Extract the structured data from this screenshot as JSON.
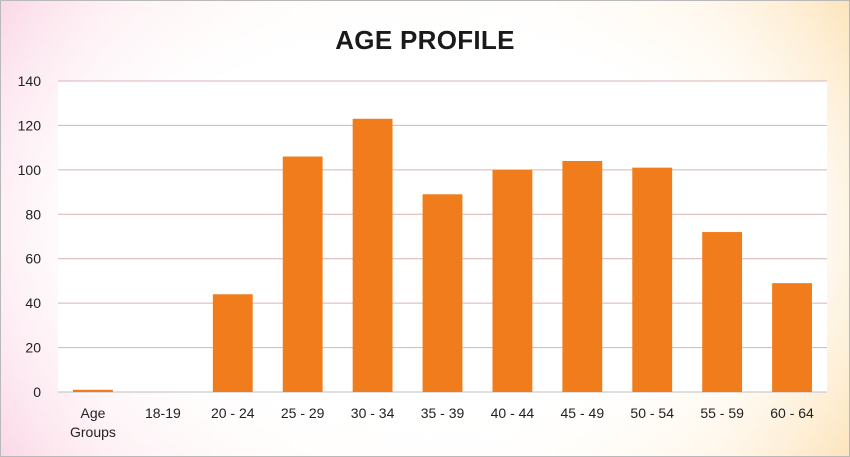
{
  "chart_data": {
    "type": "bar",
    "title": "AGE PROFILE",
    "categories": [
      "Age Groups",
      "18-19",
      "20 - 24",
      "25 - 29",
      "30 - 34",
      "35 - 39",
      "40 - 44",
      "45 - 49",
      "50 - 54",
      "55 - 59",
      "60 - 64"
    ],
    "values": [
      1,
      0,
      44,
      106,
      123,
      89,
      100,
      104,
      101,
      72,
      49
    ],
    "ylim": [
      0,
      140
    ],
    "yticks": [
      0,
      20,
      40,
      60,
      80,
      100,
      120,
      140
    ],
    "grid": true,
    "legend": "none",
    "bar_color": "#f07c1c",
    "grid_color": "#d9b3b3"
  }
}
